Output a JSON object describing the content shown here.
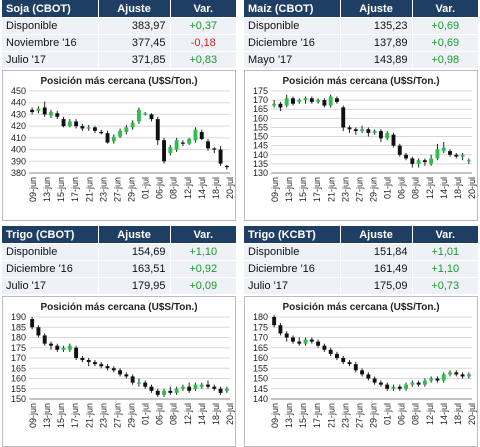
{
  "panels": [
    {
      "table": {
        "header": [
          "Soja (CBOT)",
          "Ajuste",
          "Var."
        ],
        "rows": [
          {
            "label": "Disponible",
            "ajuste": "383,97",
            "var": "+0,37",
            "dir": "pos"
          },
          {
            "label": "Noviembre '16",
            "ajuste": "377,45",
            "var": "-0,18",
            "dir": "neg"
          },
          {
            "label": "Julio '17",
            "ajuste": "371,85",
            "var": "+0,83",
            "dir": "pos"
          }
        ]
      },
      "chart_data": {
        "type": "candlestick",
        "title": "Posición más cercana (U$S/Ton.)",
        "ylim": [
          380,
          450
        ],
        "yticks": [
          380,
          390,
          400,
          410,
          420,
          430,
          440,
          450
        ],
        "xticks": [
          "09-jun",
          "13-jun",
          "15-jun",
          "17-jun",
          "21-jun",
          "23-jun",
          "27-jun",
          "29-jun",
          "01-jul",
          "06-jul",
          "08-jul",
          "12-jul",
          "14-jul",
          "18-jul",
          "20-jul"
        ],
        "up_color": "#2fbf4a",
        "down_color": "#111111",
        "candles": [
          {
            "o": 434,
            "c": 432,
            "h": 436,
            "l": 430
          },
          {
            "o": 433,
            "c": 435,
            "h": 437,
            "l": 431
          },
          {
            "o": 436,
            "c": 430,
            "h": 441,
            "l": 428
          },
          {
            "o": 429,
            "c": 432,
            "h": 434,
            "l": 427
          },
          {
            "o": 431,
            "c": 428,
            "h": 433,
            "l": 426
          },
          {
            "o": 426,
            "c": 420,
            "h": 428,
            "l": 419
          },
          {
            "o": 420,
            "c": 424,
            "h": 426,
            "l": 419
          },
          {
            "o": 424,
            "c": 420,
            "h": 426,
            "l": 418
          },
          {
            "o": 420,
            "c": 418,
            "h": 422,
            "l": 416
          },
          {
            "o": 418,
            "c": 419,
            "h": 421,
            "l": 416
          },
          {
            "o": 419,
            "c": 416,
            "h": 420,
            "l": 414
          },
          {
            "o": 415,
            "c": 414,
            "h": 417,
            "l": 413
          },
          {
            "o": 414,
            "c": 406,
            "h": 416,
            "l": 405
          },
          {
            "o": 407,
            "c": 411,
            "h": 413,
            "l": 405
          },
          {
            "o": 411,
            "c": 416,
            "h": 418,
            "l": 410
          },
          {
            "o": 415,
            "c": 419,
            "h": 421,
            "l": 413
          },
          {
            "o": 419,
            "c": 423,
            "h": 425,
            "l": 417
          },
          {
            "o": 424,
            "c": 434,
            "h": 436,
            "l": 422
          },
          {
            "o": 430,
            "c": 431,
            "h": 432,
            "l": 429
          },
          {
            "o": 430,
            "c": 426,
            "h": 431,
            "l": 424
          },
          {
            "o": 426,
            "c": 408,
            "h": 428,
            "l": 404
          },
          {
            "o": 408,
            "c": 390,
            "h": 410,
            "l": 388
          },
          {
            "o": 397,
            "c": 402,
            "h": 404,
            "l": 395
          },
          {
            "o": 400,
            "c": 408,
            "h": 410,
            "l": 398
          },
          {
            "o": 406,
            "c": 405,
            "h": 408,
            "l": 403
          },
          {
            "o": 405,
            "c": 409,
            "h": 410,
            "l": 404
          },
          {
            "o": 408,
            "c": 417,
            "h": 419,
            "l": 406
          },
          {
            "o": 415,
            "c": 409,
            "h": 417,
            "l": 408
          },
          {
            "o": 407,
            "c": 401,
            "h": 409,
            "l": 399
          },
          {
            "o": 401,
            "c": 400,
            "h": 402,
            "l": 397
          },
          {
            "o": 400,
            "c": 388,
            "h": 403,
            "l": 386
          },
          {
            "o": 386,
            "c": 385,
            "h": 387,
            "l": 383
          }
        ]
      }
    },
    {
      "table": {
        "header": [
          "Maíz (CBOT)",
          "Ajuste",
          "Var."
        ],
        "rows": [
          {
            "label": "Disponible",
            "ajuste": "135,23",
            "var": "+0,69",
            "dir": "pos"
          },
          {
            "label": "Diciembre '16",
            "ajuste": "137,89",
            "var": "+0,69",
            "dir": "pos"
          },
          {
            "label": "Mayo '17",
            "ajuste": "143,89",
            "var": "+0,98",
            "dir": "pos"
          }
        ]
      },
      "chart_data": {
        "type": "candlestick",
        "title": "Posición más cercana (U$S/Ton.)",
        "ylim": [
          130,
          175
        ],
        "yticks": [
          130,
          135,
          140,
          145,
          150,
          155,
          160,
          165,
          170,
          175
        ],
        "xticks": [
          "09-jun",
          "13-jun",
          "15-jun",
          "17-jun",
          "21-jun",
          "23-jun",
          "27-jun",
          "29-jun",
          "01-jul",
          "06-jul",
          "08-jul",
          "12-jul",
          "14-jul",
          "18-jul",
          "20-jul"
        ],
        "up_color": "#2fbf4a",
        "down_color": "#111111",
        "candles": [
          {
            "o": 167,
            "c": 168,
            "h": 170,
            "l": 166
          },
          {
            "o": 168,
            "c": 166,
            "h": 169,
            "l": 164
          },
          {
            "o": 167,
            "c": 171,
            "h": 173,
            "l": 166
          },
          {
            "o": 171,
            "c": 168,
            "h": 172,
            "l": 167
          },
          {
            "o": 169,
            "c": 170,
            "h": 171,
            "l": 168
          },
          {
            "o": 170,
            "c": 171,
            "h": 172,
            "l": 168
          },
          {
            "o": 171,
            "c": 169,
            "h": 172,
            "l": 168
          },
          {
            "o": 169,
            "c": 170,
            "h": 171,
            "l": 168
          },
          {
            "o": 170,
            "c": 167,
            "h": 171,
            "l": 166
          },
          {
            "o": 167,
            "c": 172,
            "h": 173,
            "l": 166
          },
          {
            "o": 171,
            "c": 169,
            "h": 172,
            "l": 168
          },
          {
            "o": 166,
            "c": 155,
            "h": 167,
            "l": 153
          },
          {
            "o": 155,
            "c": 154,
            "h": 156,
            "l": 152
          },
          {
            "o": 154,
            "c": 153,
            "h": 155,
            "l": 151
          },
          {
            "o": 153,
            "c": 154,
            "h": 156,
            "l": 152
          },
          {
            "o": 154,
            "c": 152,
            "h": 155,
            "l": 150
          },
          {
            "o": 152,
            "c": 153,
            "h": 154,
            "l": 151
          },
          {
            "o": 153,
            "c": 149,
            "h": 154,
            "l": 147
          },
          {
            "o": 149,
            "c": 152,
            "h": 153,
            "l": 148
          },
          {
            "o": 151,
            "c": 145,
            "h": 152,
            "l": 144
          },
          {
            "o": 145,
            "c": 140,
            "h": 146,
            "l": 139
          },
          {
            "o": 140,
            "c": 138,
            "h": 141,
            "l": 137
          },
          {
            "o": 138,
            "c": 135,
            "h": 139,
            "l": 133
          },
          {
            "o": 135,
            "c": 137,
            "h": 138,
            "l": 133
          },
          {
            "o": 137,
            "c": 136,
            "h": 138,
            "l": 134
          },
          {
            "o": 135,
            "c": 138,
            "h": 140,
            "l": 134
          },
          {
            "o": 138,
            "c": 143,
            "h": 146,
            "l": 137
          },
          {
            "o": 142,
            "c": 144,
            "h": 147,
            "l": 141
          },
          {
            "o": 142,
            "c": 140,
            "h": 143,
            "l": 139
          },
          {
            "o": 140,
            "c": 139,
            "h": 141,
            "l": 138
          },
          {
            "o": 139,
            "c": 140,
            "h": 141,
            "l": 137
          },
          {
            "o": 137,
            "c": 137,
            "h": 138,
            "l": 135
          }
        ]
      }
    },
    {
      "table": {
        "header": [
          "Trigo (CBOT)",
          "Ajuste",
          "Var."
        ],
        "rows": [
          {
            "label": "Disponible",
            "ajuste": "154,69",
            "var": "+1,10",
            "dir": "pos"
          },
          {
            "label": "Diciembre '16",
            "ajuste": "163,51",
            "var": "+0,92",
            "dir": "pos"
          },
          {
            "label": "Julio '17",
            "ajuste": "179,95",
            "var": "+0,09",
            "dir": "pos"
          }
        ]
      },
      "chart_data": {
        "type": "candlestick",
        "title": "Posición más cercana (U$S/Ton.)",
        "ylim": [
          150,
          190
        ],
        "yticks": [
          150,
          155,
          160,
          165,
          170,
          175,
          180,
          185,
          190
        ],
        "xticks": [
          "09-jun",
          "13-jun",
          "15-jun",
          "17-jun",
          "21-jun",
          "23-jun",
          "27-jun",
          "29-jun",
          "01-jul",
          "06-jul",
          "08-jul",
          "12-jul",
          "14-jul",
          "18-jul",
          "20-jul"
        ],
        "up_color": "#2fbf4a",
        "down_color": "#111111",
        "candles": [
          {
            "o": 189,
            "c": 185,
            "h": 190,
            "l": 184
          },
          {
            "o": 185,
            "c": 181,
            "h": 186,
            "l": 180
          },
          {
            "o": 181,
            "c": 177,
            "h": 182,
            "l": 176
          },
          {
            "o": 177,
            "c": 176,
            "h": 178,
            "l": 174
          },
          {
            "o": 176,
            "c": 174,
            "h": 177,
            "l": 173
          },
          {
            "o": 174,
            "c": 175,
            "h": 176,
            "l": 173
          },
          {
            "o": 174,
            "c": 176,
            "h": 177,
            "l": 173
          },
          {
            "o": 175,
            "c": 170,
            "h": 176,
            "l": 169
          },
          {
            "o": 170,
            "c": 169,
            "h": 171,
            "l": 168
          },
          {
            "o": 169,
            "c": 168,
            "h": 170,
            "l": 166
          },
          {
            "o": 168,
            "c": 167,
            "h": 169,
            "l": 166
          },
          {
            "o": 167,
            "c": 166,
            "h": 168,
            "l": 165
          },
          {
            "o": 166,
            "c": 165,
            "h": 167,
            "l": 164
          },
          {
            "o": 165,
            "c": 164,
            "h": 166,
            "l": 163
          },
          {
            "o": 164,
            "c": 162,
            "h": 165,
            "l": 161
          },
          {
            "o": 162,
            "c": 161,
            "h": 163,
            "l": 160
          },
          {
            "o": 161,
            "c": 158,
            "h": 162,
            "l": 157
          },
          {
            "o": 158,
            "c": 158,
            "h": 160,
            "l": 156
          },
          {
            "o": 158,
            "c": 156,
            "h": 159,
            "l": 155
          },
          {
            "o": 156,
            "c": 154,
            "h": 157,
            "l": 153
          },
          {
            "o": 154,
            "c": 152,
            "h": 155,
            "l": 151
          },
          {
            "o": 152,
            "c": 154,
            "h": 155,
            "l": 151
          },
          {
            "o": 154,
            "c": 153,
            "h": 156,
            "l": 152
          },
          {
            "o": 153,
            "c": 155,
            "h": 156,
            "l": 152
          },
          {
            "o": 155,
            "c": 156,
            "h": 157,
            "l": 154
          },
          {
            "o": 156,
            "c": 154,
            "h": 158,
            "l": 153
          },
          {
            "o": 155,
            "c": 157,
            "h": 158,
            "l": 154
          },
          {
            "o": 156,
            "c": 157,
            "h": 158,
            "l": 155
          },
          {
            "o": 157,
            "c": 156,
            "h": 159,
            "l": 155
          },
          {
            "o": 156,
            "c": 155,
            "h": 157,
            "l": 154
          },
          {
            "o": 155,
            "c": 153,
            "h": 156,
            "l": 152
          },
          {
            "o": 154,
            "c": 155,
            "h": 156,
            "l": 153
          }
        ]
      }
    },
    {
      "table": {
        "header": [
          "Trigo (KCBT)",
          "Ajuste",
          "Var."
        ],
        "rows": [
          {
            "label": "Disponible",
            "ajuste": "151,84",
            "var": "+1,01",
            "dir": "pos"
          },
          {
            "label": "Diciembre '16",
            "ajuste": "161,49",
            "var": "+1,10",
            "dir": "pos"
          },
          {
            "label": "Julio '17",
            "ajuste": "175,09",
            "var": "+0,73",
            "dir": "pos"
          }
        ]
      },
      "chart_data": {
        "type": "candlestick",
        "title": "Posición más cercana (U$S/Ton.)",
        "ylim": [
          140,
          180
        ],
        "yticks": [
          140,
          145,
          150,
          155,
          160,
          165,
          170,
          175,
          180
        ],
        "xticks": [
          "09-jun",
          "13-jun",
          "15-jun",
          "17-jun",
          "21-jun",
          "23-jun",
          "27-jun",
          "29-jun",
          "01-jul",
          "06-jul",
          "08-jul",
          "12-jul",
          "14-jul",
          "18-jul",
          "20-jul"
        ],
        "up_color": "#2fbf4a",
        "down_color": "#111111",
        "candles": [
          {
            "o": 180,
            "c": 176,
            "h": 181,
            "l": 175
          },
          {
            "o": 176,
            "c": 172,
            "h": 177,
            "l": 171
          },
          {
            "o": 172,
            "c": 170,
            "h": 173,
            "l": 168
          },
          {
            "o": 170,
            "c": 168,
            "h": 171,
            "l": 167
          },
          {
            "o": 168,
            "c": 167,
            "h": 170,
            "l": 166
          },
          {
            "o": 167,
            "c": 169,
            "h": 170,
            "l": 166
          },
          {
            "o": 169,
            "c": 168,
            "h": 170,
            "l": 167
          },
          {
            "o": 168,
            "c": 166,
            "h": 169,
            "l": 165
          },
          {
            "o": 166,
            "c": 164,
            "h": 167,
            "l": 163
          },
          {
            "o": 164,
            "c": 162,
            "h": 165,
            "l": 161
          },
          {
            "o": 162,
            "c": 160,
            "h": 163,
            "l": 159
          },
          {
            "o": 160,
            "c": 158,
            "h": 161,
            "l": 157
          },
          {
            "o": 158,
            "c": 157,
            "h": 159,
            "l": 156
          },
          {
            "o": 157,
            "c": 154,
            "h": 158,
            "l": 153
          },
          {
            "o": 154,
            "c": 152,
            "h": 155,
            "l": 151
          },
          {
            "o": 152,
            "c": 150,
            "h": 153,
            "l": 149
          },
          {
            "o": 150,
            "c": 148,
            "h": 151,
            "l": 147
          },
          {
            "o": 148,
            "c": 147,
            "h": 149,
            "l": 146
          },
          {
            "o": 147,
            "c": 145,
            "h": 148,
            "l": 144
          },
          {
            "o": 145,
            "c": 146,
            "h": 147,
            "l": 144
          },
          {
            "o": 146,
            "c": 145,
            "h": 147,
            "l": 144
          },
          {
            "o": 145,
            "c": 147,
            "h": 148,
            "l": 144
          },
          {
            "o": 147,
            "c": 148,
            "h": 149,
            "l": 146
          },
          {
            "o": 148,
            "c": 147,
            "h": 149,
            "l": 146
          },
          {
            "o": 147,
            "c": 149,
            "h": 150,
            "l": 146
          },
          {
            "o": 149,
            "c": 150,
            "h": 151,
            "l": 148
          },
          {
            "o": 150,
            "c": 149,
            "h": 151,
            "l": 148
          },
          {
            "o": 149,
            "c": 152,
            "h": 153,
            "l": 148
          },
          {
            "o": 152,
            "c": 153,
            "h": 154,
            "l": 151
          },
          {
            "o": 153,
            "c": 152,
            "h": 154,
            "l": 151
          },
          {
            "o": 152,
            "c": 151,
            "h": 153,
            "l": 150
          },
          {
            "o": 151,
            "c": 152,
            "h": 153,
            "l": 150
          }
        ]
      }
    }
  ]
}
